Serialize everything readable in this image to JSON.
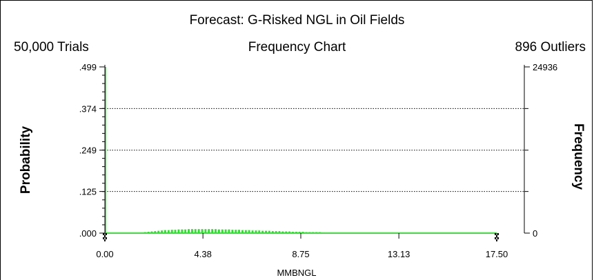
{
  "header": {
    "title": "Forecast: G-Risked NGL in Oil Fields",
    "trials": "50,000 Trials",
    "subtitle": "Frequency Chart",
    "outliers": "896 Outliers"
  },
  "chart_data": {
    "type": "bar",
    "title": "Forecast: G-Risked NGL in Oil Fields",
    "subtitle": "Frequency Chart",
    "xlabel": "MMBNGL",
    "ylabel_left": "Probability",
    "ylabel_right": "Frequency",
    "x_ticks": [
      "0.00",
      "4.38",
      "8.75",
      "13.13",
      "17.50"
    ],
    "x_tick_values": [
      0.0,
      4.38,
      8.75,
      13.13,
      17.5
    ],
    "xlim": [
      0.0,
      17.5
    ],
    "y_ticks_left": [
      ".499",
      ".374",
      ".249",
      ".125",
      ".000"
    ],
    "y_tick_values_left": [
      0.499,
      0.374,
      0.249,
      0.125,
      0.0
    ],
    "ylim": [
      0.0,
      0.499
    ],
    "y_ticks_right": [
      "24936",
      "0"
    ],
    "grid": "horizontal dotted",
    "bar_color": "#33dd33",
    "trials": "50,000 Trials",
    "outliers": "896 Outliers",
    "spike": {
      "x": 0.0,
      "y": 0.499
    },
    "bins_x": [
      1.6,
      1.75,
      1.9,
      2.05,
      2.2,
      2.35,
      2.5,
      2.65,
      2.8,
      2.95,
      3.1,
      3.25,
      3.4,
      3.55,
      3.7,
      3.85,
      4.0,
      4.15,
      4.3,
      4.45,
      4.6,
      4.75,
      4.9,
      5.05,
      5.2,
      5.35,
      5.5,
      5.65,
      5.8,
      5.95,
      6.1,
      6.25,
      6.4,
      6.55,
      6.7,
      6.85,
      7.0,
      7.15,
      7.3,
      7.45,
      7.6,
      7.75,
      7.9,
      8.05,
      8.2,
      8.35,
      8.5,
      8.65,
      8.8,
      8.95,
      9.1,
      9.25,
      9.4,
      9.55,
      9.7,
      9.85,
      10.0,
      10.15,
      10.3,
      10.45
    ],
    "bins_y": [
      0.002,
      0.003,
      0.004,
      0.005,
      0.006,
      0.007,
      0.008,
      0.009,
      0.009,
      0.01,
      0.01,
      0.011,
      0.011,
      0.011,
      0.012,
      0.012,
      0.012,
      0.012,
      0.012,
      0.012,
      0.012,
      0.012,
      0.012,
      0.011,
      0.011,
      0.011,
      0.011,
      0.01,
      0.01,
      0.01,
      0.009,
      0.009,
      0.009,
      0.008,
      0.008,
      0.008,
      0.007,
      0.007,
      0.007,
      0.006,
      0.006,
      0.006,
      0.005,
      0.005,
      0.005,
      0.004,
      0.004,
      0.004,
      0.004,
      0.003,
      0.003,
      0.003,
      0.003,
      0.003,
      0.002,
      0.002,
      0.002,
      0.002,
      0.002,
      0.002
    ],
    "baseline": {
      "x_start": 0.0,
      "x_end": 17.5,
      "y": 0.0
    }
  }
}
